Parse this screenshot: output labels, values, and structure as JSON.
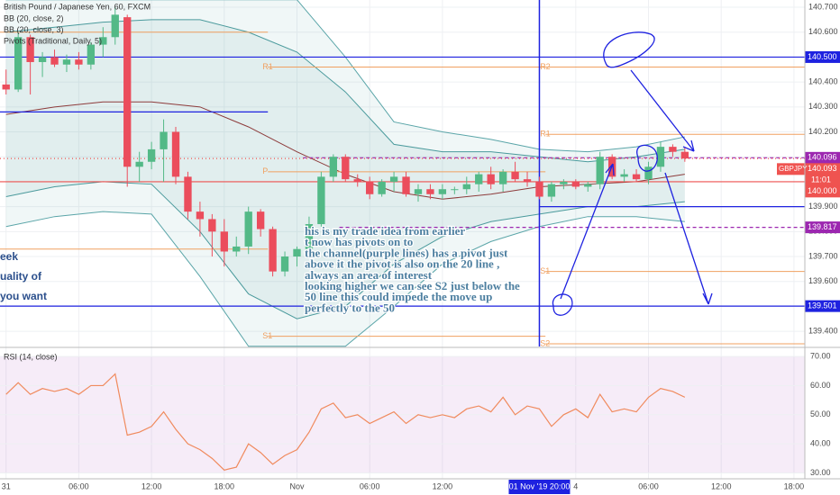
{
  "chart_data": [
    {
      "type": "candlestick",
      "title": "British Pound / Japanese Yen, 60, FXCM",
      "indicators": [
        "BB (20, close, 2)",
        "BB (20, close, 3)",
        "Pivots (Traditional, Daily, 5)"
      ],
      "up_color": "#53b987",
      "down_color": "#eb4d5c",
      "open": [
        140.39,
        140.37,
        140.58,
        140.48,
        140.5,
        140.47,
        140.49,
        140.47,
        140.55,
        140.58,
        140.66,
        140.06,
        140.08,
        140.13,
        140.2,
        140.02,
        139.88,
        139.85,
        139.8,
        139.72,
        139.74,
        139.88,
        139.81,
        139.64,
        139.7,
        139.73,
        139.83,
        140.02,
        140.1,
        140.01,
        140.0,
        139.95,
        140.0,
        140.02,
        139.95,
        139.97,
        139.95,
        139.97,
        139.97,
        139.99,
        140.03,
        139.99,
        140.04,
        140.01,
        140.0,
        139.94,
        139.99,
        140.0,
        139.98,
        139.99,
        140.1,
        140.02,
        140.03,
        140.01,
        140.06,
        140.14,
        140.12
      ],
      "high": [
        140.45,
        140.6,
        140.59,
        140.52,
        140.53,
        140.51,
        140.52,
        140.56,
        140.62,
        140.7,
        140.67,
        140.12,
        140.16,
        140.25,
        140.22,
        140.04,
        139.92,
        139.87,
        139.85,
        139.78,
        139.9,
        139.89,
        139.82,
        139.72,
        139.74,
        139.86,
        140.04,
        140.11,
        140.11,
        140.03,
        140.02,
        140.01,
        140.04,
        140.04,
        139.99,
        139.99,
        139.99,
        139.98,
        140.02,
        140.04,
        140.06,
        140.05,
        140.08,
        140.04,
        140.02,
        140.0,
        140.01,
        140.01,
        140.0,
        140.12,
        140.11,
        140.05,
        140.05,
        140.08,
        140.16,
        140.15,
        140.14
      ],
      "low": [
        140.35,
        140.36,
        140.35,
        140.42,
        140.46,
        140.44,
        140.45,
        140.45,
        140.5,
        140.55,
        139.98,
        140.0,
        140.05,
        140.0,
        139.99,
        139.85,
        139.78,
        139.7,
        139.66,
        139.7,
        139.71,
        139.78,
        139.62,
        139.62,
        139.66,
        139.72,
        139.82,
        140.0,
        140.0,
        139.98,
        139.93,
        139.94,
        139.96,
        139.94,
        139.92,
        139.93,
        139.93,
        139.95,
        139.95,
        139.96,
        139.97,
        139.96,
        140.0,
        139.98,
        139.93,
        139.92,
        139.97,
        139.97,
        139.96,
        139.97,
        140.01,
        140.0,
        140.0,
        139.99,
        140.04,
        140.1,
        140.08
      ],
      "close": [
        140.37,
        140.58,
        140.48,
        140.5,
        140.47,
        140.49,
        140.47,
        140.55,
        140.58,
        140.67,
        140.06,
        140.08,
        140.13,
        140.2,
        140.02,
        139.88,
        139.85,
        139.8,
        139.72,
        139.74,
        139.88,
        139.81,
        139.64,
        139.7,
        139.73,
        139.83,
        140.02,
        140.1,
        140.01,
        140.0,
        139.95,
        140.0,
        140.02,
        139.95,
        139.97,
        139.95,
        139.97,
        139.97,
        139.99,
        140.03,
        139.99,
        140.04,
        140.01,
        140.0,
        139.94,
        139.99,
        140.0,
        139.98,
        139.99,
        140.1,
        140.02,
        140.03,
        140.01,
        140.06,
        140.14,
        140.12,
        140.093
      ],
      "xlim": [
        -0.5,
        65.9
      ],
      "xticks": [
        {
          "value": 0,
          "label": "31"
        },
        {
          "value": 6,
          "label": "06:00"
        },
        {
          "value": 12,
          "label": "12:00"
        },
        {
          "value": 18,
          "label": "18:00"
        },
        {
          "value": 24,
          "label": "Nov"
        },
        {
          "value": 30,
          "label": "06:00"
        },
        {
          "value": 36,
          "label": "12:00"
        },
        {
          "value": 47,
          "label": "4"
        },
        {
          "value": 53,
          "label": "06:00"
        },
        {
          "value": 59,
          "label": "12:00"
        },
        {
          "value": 65,
          "label": "18:00"
        }
      ],
      "ylim": [
        139.339,
        140.729
      ],
      "yticks": [
        {
          "value": 139.4,
          "label": "139.400"
        },
        {
          "value": 139.5,
          "label": "139.500"
        },
        {
          "value": 139.6,
          "label": "139.600"
        },
        {
          "value": 139.7,
          "label": "139.700"
        },
        {
          "value": 139.8,
          "label": "139.800"
        },
        {
          "value": 139.9,
          "label": "139.900"
        },
        {
          "value": 140.0,
          "label": "140.000"
        },
        {
          "value": 140.1,
          "label": "140.100"
        },
        {
          "value": 140.2,
          "label": "140.200"
        },
        {
          "value": 140.3,
          "label": "140.300"
        },
        {
          "value": 140.4,
          "label": "140.400"
        },
        {
          "value": 140.5,
          "label": "140.500"
        },
        {
          "value": 140.6,
          "label": "140.600"
        },
        {
          "value": 140.7,
          "label": "140.700"
        }
      ],
      "grid": true,
      "band_x": [
        0,
        4,
        8,
        12,
        16,
        20,
        24,
        28,
        32,
        36,
        40,
        44,
        48,
        52,
        56
      ],
      "bands": [
        {
          "color": "#5aa5a8",
          "upper": [
            140.73,
            140.73,
            140.73,
            140.73,
            140.73,
            140.73,
            140.73,
            140.5,
            140.24,
            140.2,
            140.17,
            140.13,
            140.12,
            140.14,
            140.18
          ],
          "lower": [
            139.82,
            139.86,
            139.88,
            139.87,
            139.62,
            139.34,
            139.34,
            139.34,
            139.5,
            139.67,
            139.76,
            139.82,
            139.86,
            139.86,
            139.84
          ]
        },
        {
          "color": "#4a9a9c",
          "upper": [
            140.6,
            140.62,
            140.64,
            140.65,
            140.65,
            140.6,
            140.52,
            140.36,
            140.15,
            140.12,
            140.12,
            140.1,
            140.08,
            140.1,
            140.13
          ],
          "lower": [
            139.94,
            139.98,
            140.0,
            139.99,
            139.8,
            139.55,
            139.45,
            139.5,
            139.67,
            139.78,
            139.84,
            139.87,
            139.9,
            139.9,
            139.92
          ]
        }
      ],
      "basis": {
        "color": "#8d3b3b",
        "values": [
          140.27,
          140.3,
          140.32,
          140.32,
          140.3,
          140.22,
          140.12,
          140.03,
          139.96,
          139.93,
          139.95,
          139.98,
          139.99,
          140.0,
          140.03
        ]
      },
      "pivot_color": "#f0a060",
      "pivots": [
        {
          "value": 140.6,
          "x": [
            -0.5,
            21.6
          ]
        },
        {
          "value": 139.73,
          "x": [
            -0.5,
            21.6
          ]
        },
        {
          "label": "R1",
          "value": 140.46,
          "x": [
            21.6,
            44.5
          ]
        },
        {
          "label": "P",
          "value": 140.04,
          "x": [
            21.6,
            44.5
          ]
        },
        {
          "label": "S1",
          "value": 139.38,
          "x": [
            21.6,
            44.5
          ]
        },
        {
          "label": "R2",
          "value": 140.46,
          "x": [
            44.5,
            65.9
          ]
        },
        {
          "label": "R1",
          "value": 140.19,
          "x": [
            44.5,
            65.9
          ]
        },
        {
          "label": "S1",
          "value": 139.64,
          "x": [
            44.5,
            65.9
          ]
        },
        {
          "label": "S2",
          "value": 139.35,
          "x": [
            44.5,
            65.9
          ]
        }
      ],
      "levels": [
        {
          "value": 140.5,
          "label": "140.500",
          "color": "#1e22e0"
        },
        {
          "value": 140.096,
          "label": "140.096",
          "color": "#9c27b0",
          "style": "dashed",
          "from": 24.5
        },
        {
          "value": 140.093,
          "label": "140.093",
          "color": "#ef5350",
          "style": "dotted",
          "symbol": "GBPJPY",
          "countdown": "11:01"
        },
        {
          "value": 140.0,
          "label": "140.000",
          "color": "#ef5350"
        },
        {
          "value": 139.817,
          "label": "139.817",
          "color": "#9c27b0",
          "style": "dashed",
          "from": 27.5
        },
        {
          "value": 139.501,
          "label": "139.501",
          "color": "#1e22e0"
        },
        {
          "value": 140.28,
          "color": "#1e22e0",
          "to": 21.6
        },
        {
          "value": 139.9,
          "color": "#1e22e0",
          "from": 44
        }
      ],
      "crosshair": {
        "x": 44,
        "label": "01 Nov '19  20:00",
        "color": "#1e22e0"
      },
      "annotation": [
        "his is my trade idea from earlier",
        "t now has pivots on to",
        "the channel(purple lines) has a pivot just",
        "above it the pivot is also on the 20 line ,",
        "always an area of interest",
        "looking higher we can see S2 just below the",
        "50 line this could impede the move up",
        "perfectly to the 50"
      ],
      "side_notes": [
        "eek",
        "uality of",
        "you want"
      ]
    },
    {
      "type": "line",
      "title": "RSI (14, close)",
      "color": "#f08a5d",
      "values": [
        57,
        61,
        57,
        59,
        58,
        59,
        57,
        60,
        60,
        64,
        43,
        44,
        46,
        51,
        45,
        40,
        38,
        35,
        31,
        32,
        40,
        37,
        33,
        36,
        38,
        44,
        52,
        54,
        49,
        50,
        47,
        49,
        51,
        47,
        50,
        49,
        50,
        49,
        52,
        53,
        51,
        56,
        50,
        53,
        52,
        46,
        50,
        52,
        49,
        57,
        51,
        52,
        51,
        56,
        59,
        58,
        56
      ],
      "band": [
        30,
        70
      ],
      "ylim": [
        28,
        72.5
      ],
      "yticks": [
        {
          "value": 30,
          "label": "30.00"
        },
        {
          "value": 40,
          "label": "40.00"
        },
        {
          "value": 50,
          "label": "50.00"
        },
        {
          "value": 60,
          "label": "60.00"
        },
        {
          "value": 70,
          "label": "70.00"
        }
      ]
    }
  ]
}
